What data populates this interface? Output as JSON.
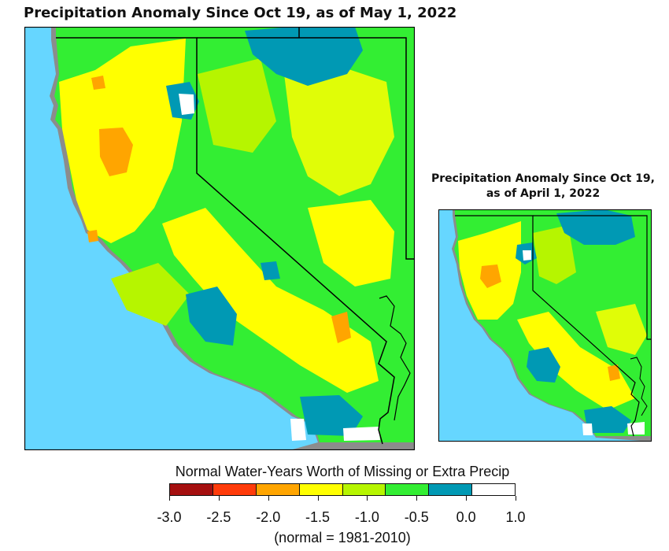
{
  "main_map": {
    "title": "Precipitation Anomaly Since Oct 19, as of May 1, 2022"
  },
  "inset_map": {
    "title_line1": "Precipitation Anomaly Since Oct 19,",
    "title_line2": "as of April 1, 2022"
  },
  "legend": {
    "title": "Normal Water-Years Worth of Missing or Extra Precip",
    "note": "(normal = 1981-2010)",
    "tick_labels": [
      "-3.0",
      "-2.5",
      "-2.0",
      "-1.5",
      "-1.0",
      "-0.5",
      "0.0",
      "1.0"
    ],
    "colors": [
      "#a50f0f",
      "#ff3b0a",
      "#ffa500",
      "#ffff00",
      "#b6f500",
      "#33ee33",
      "#0099b4",
      "#ffffff"
    ]
  },
  "map_colors": {
    "ocean": "#66d6ff",
    "missing_gray": "#8c8c8c",
    "border": "#000000"
  }
}
